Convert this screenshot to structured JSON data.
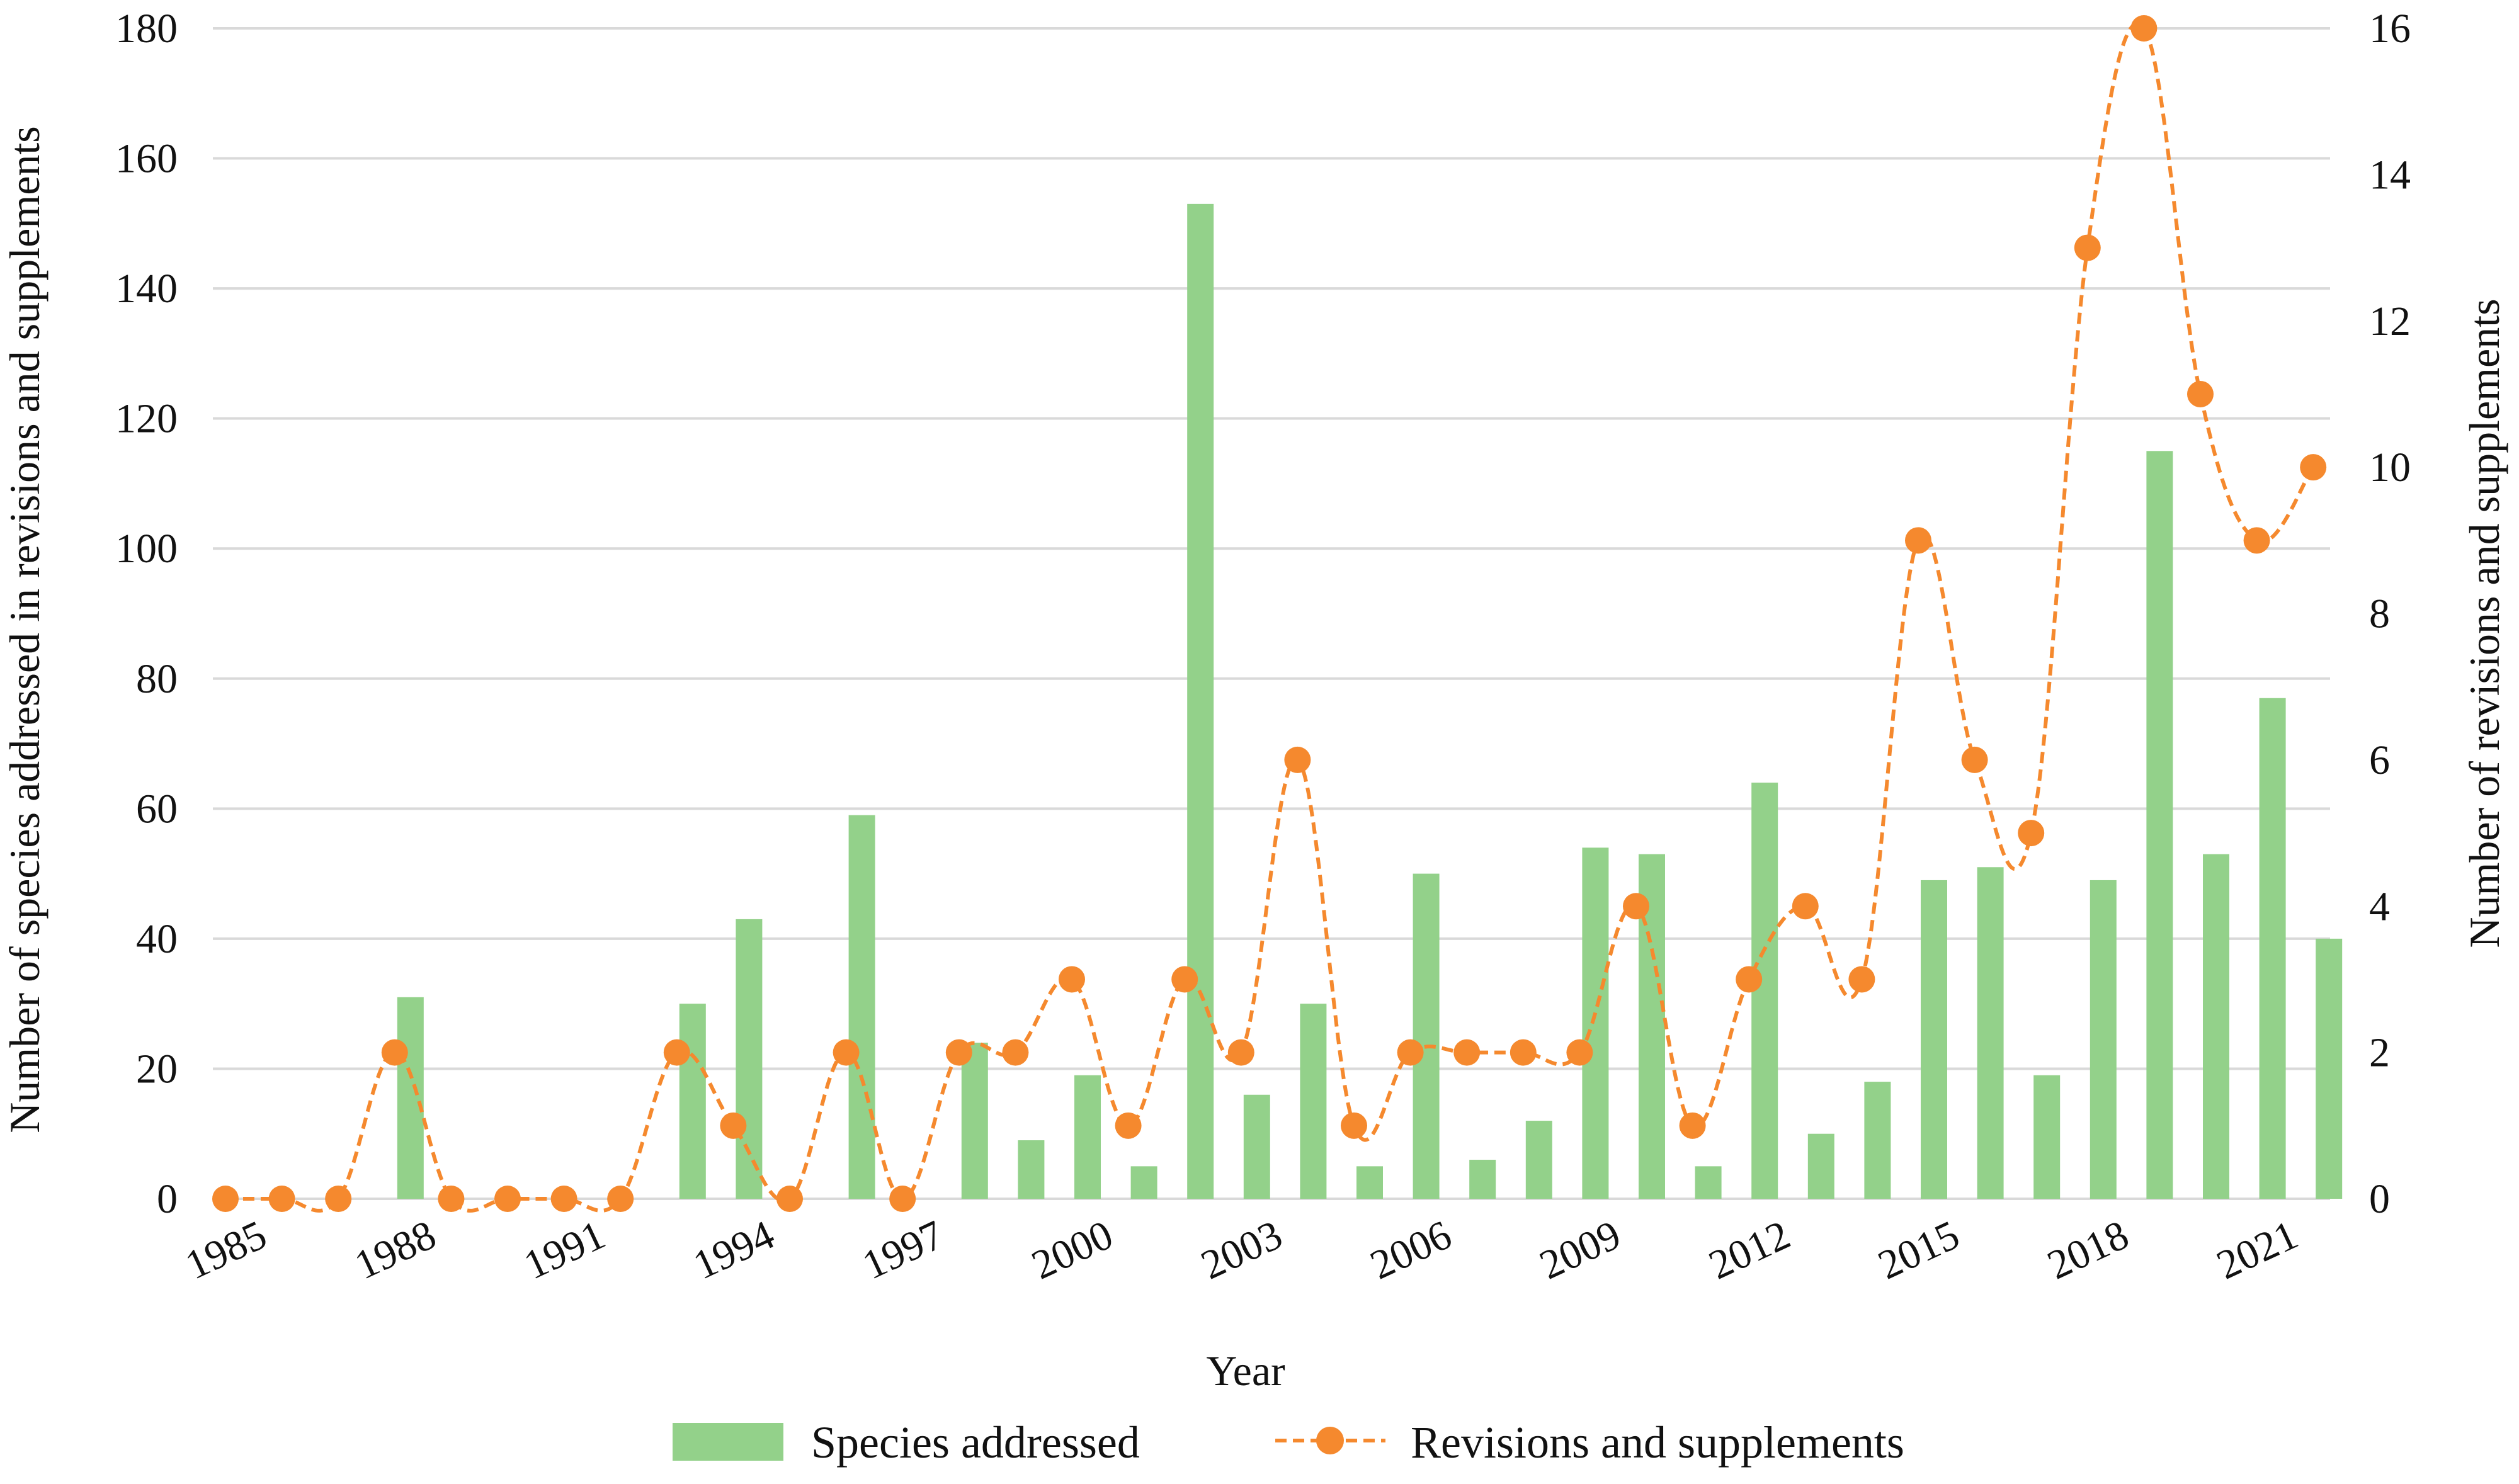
{
  "chart_data": {
    "type": "bar+line",
    "title": "",
    "xlabel": "Year",
    "ylabel_left": "Number of species addressed in revisions and supplements",
    "ylabel_right": "Number of revisions and supplements",
    "ylim_left": [
      0,
      180
    ],
    "ylim_right": [
      0,
      16
    ],
    "yticks_left": [
      0,
      20,
      40,
      60,
      80,
      100,
      120,
      140,
      160,
      180
    ],
    "yticks_right": [
      0,
      2,
      4,
      6,
      8,
      10,
      12,
      14,
      16
    ],
    "grid": true,
    "legend_position": "bottom-center",
    "years": [
      1985,
      1986,
      1987,
      1988,
      1989,
      1990,
      1991,
      1992,
      1993,
      1994,
      1995,
      1996,
      1997,
      1998,
      1999,
      2000,
      2001,
      2002,
      2003,
      2004,
      2005,
      2006,
      2007,
      2008,
      2009,
      2010,
      2011,
      2012,
      2013,
      2014,
      2015,
      2016,
      2017,
      2018,
      2019,
      2020,
      2021,
      2022
    ],
    "x_tick_labels": [
      "1985",
      "1988",
      "1991",
      "1994",
      "1997",
      "2000",
      "2003",
      "2006",
      "2009",
      "2012",
      "2015",
      "2018",
      "2021"
    ],
    "series": [
      {
        "name": "Species addressed",
        "type": "bar",
        "axis": "left",
        "color": "#93D18A",
        "values": [
          0,
          0,
          0,
          31,
          0,
          0,
          0,
          0,
          30,
          43,
          0,
          59,
          0,
          24,
          9,
          19,
          5,
          153,
          16,
          30,
          5,
          50,
          6,
          12,
          54,
          53,
          5,
          64,
          10,
          18,
          49,
          51,
          19,
          49,
          115,
          53,
          77,
          40
        ]
      },
      {
        "name": "Revisions and supplements",
        "type": "line",
        "axis": "right",
        "color": "#F5892E",
        "values": [
          0,
          0,
          0,
          2,
          0,
          0,
          0,
          0,
          2,
          1,
          0,
          2,
          0,
          2,
          2,
          3,
          1,
          3,
          2,
          6,
          1,
          2,
          2,
          2,
          2,
          4,
          1,
          3,
          4,
          3,
          9,
          6,
          5,
          13,
          16,
          11,
          9,
          10
        ]
      }
    ]
  },
  "colors": {
    "grid": "#D9D9D9",
    "bar": "#93D18A",
    "line": "#F5892E"
  }
}
